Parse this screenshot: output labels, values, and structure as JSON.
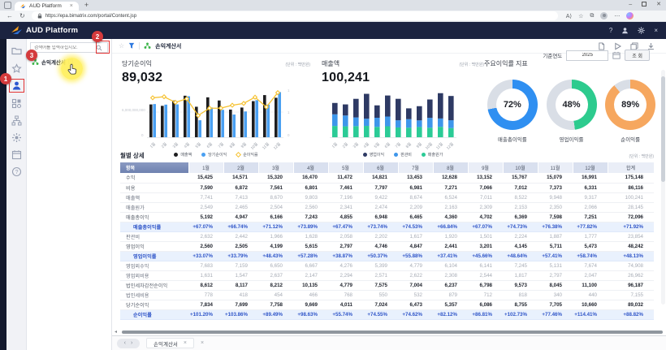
{
  "browser": {
    "tab_title": "AUD Platform",
    "url": "https://epa.bimatrix.com/portal/Content.jsp",
    "nav_icons": [
      "back-icon",
      "reload-icon",
      "lock-icon"
    ],
    "action_icons": [
      "read-aloud-icon",
      "favorite-star-icon",
      "collections-icon",
      "profile-avatar",
      "more-menu-icon",
      "copilot-icon"
    ],
    "window_controls": [
      "minimize-icon",
      "maximize-icon",
      "close-icon"
    ]
  },
  "navbar": {
    "brand": "AUD Platform",
    "right_icons": [
      "help-icon",
      "user-icon",
      "gear-icon",
      "close-icon"
    ],
    "help_glyph": "?",
    "close_glyph": "×"
  },
  "sidebar": {
    "rail_icons": [
      "folder-icon",
      "star-icon",
      "user-icon",
      "grid-icon",
      "sitemap-icon",
      "gear-flower-icon",
      "calendar-icon",
      "help-icon"
    ]
  },
  "tree": {
    "search_placeholder": "검색어를 입력하십시오.",
    "item_label": "손익계산서"
  },
  "toolbar": {
    "report_title": "손익계산서",
    "star_glyph": "☆",
    "right_icons": [
      "document-icon",
      "run-icon",
      "window-copy-icon",
      "download-icon"
    ]
  },
  "controls": {
    "base_year_label": "기준연도",
    "base_year_value": "2025",
    "query_button_label": "조 회"
  },
  "annotations": {
    "step1": "1",
    "step2": "2",
    "step3": "3"
  },
  "chart_data": [
    {
      "type": "bar",
      "subtype": "grouped-bars-with-line",
      "title": "당기순이익",
      "kpi_value": "89,032",
      "unit": "(단위 : 백만원)",
      "categories": [
        "1월",
        "2월",
        "3월",
        "4월",
        "5월",
        "6월",
        "7월",
        "8월",
        "9월",
        "10월",
        "11월",
        "12월"
      ],
      "series": [
        {
          "name": "매출액",
          "type": "bar",
          "color": "#1d1d1f",
          "values": [
            7741,
            7413,
            8670,
            9803,
            7196,
            9422,
            8674,
            6524,
            7011,
            8522,
            9948,
            9317
          ]
        },
        {
          "name": "당기순이익",
          "type": "bar",
          "color": "#4aa0f2",
          "values": [
            7834,
            7699,
            7758,
            9669,
            4011,
            7024,
            6473,
            5357,
            6086,
            8755,
            7705,
            10660
          ]
        },
        {
          "name": "순이익률",
          "type": "line",
          "color": "#f6c231",
          "marker": "diamond",
          "values": [
            101.2,
            103.86,
            89.49,
            98.63,
            55.74,
            74.55,
            74.62,
            82.12,
            86.81,
            102.73,
            77.46,
            114.41
          ]
        }
      ],
      "y_left_ticks": [
        "6,000,000,000",
        "0"
      ],
      "y_right_ticks": [
        "1",
        "1",
        "0"
      ],
      "legend_position": "bottom"
    },
    {
      "type": "bar",
      "subtype": "stacked",
      "title": "매출액",
      "kpi_value": "100,241",
      "unit": "(단위 : 백만원)",
      "categories": [
        "1월",
        "2월",
        "3월",
        "4월",
        "5월",
        "6월",
        "7월",
        "8월",
        "9월",
        "10월",
        "11월",
        "12월"
      ],
      "series": [
        {
          "name": "매출원가",
          "color": "#2bcb96",
          "values": [
            2549,
            2465,
            2504,
            2560,
            2341,
            2474,
            2209,
            2163,
            2309,
            2153,
            2350,
            2066
          ]
        },
        {
          "name": "판관비",
          "color": "#3e96ea",
          "values": [
            2632,
            2442,
            1966,
            1628,
            2058,
            2202,
            1617,
            1920,
            1501,
            2224,
            1887,
            1777
          ]
        },
        {
          "name": "영업이익",
          "color": "#2e3a64",
          "values": [
            2560,
            2505,
            4199,
            5615,
            2797,
            4746,
            4847,
            2441,
            3201,
            4145,
            5711,
            5473
          ]
        }
      ],
      "legend_order": [
        "영업이익",
        "판관비",
        "매출원가"
      ],
      "legend_position": "bottom"
    },
    {
      "type": "pie",
      "subtype": "donut-set",
      "title": "주요이익률 지표",
      "track_color": "#d9dee6",
      "donuts": [
        {
          "label": "매출총이익률",
          "value": 72,
          "display": "72%",
          "color": "#2f8ff1"
        },
        {
          "label": "영업이익률",
          "value": 48,
          "display": "48%",
          "color": "#2dcb8e"
        },
        {
          "label": "순이익률",
          "value": 89,
          "display": "89%",
          "color": "#f6a75f"
        }
      ]
    }
  ],
  "table": {
    "title": "월별 상세",
    "unit": "(단위 : 백만원)",
    "columns": [
      "항목",
      "1월",
      "2월",
      "3월",
      "4월",
      "5월",
      "6월",
      "7월",
      "8월",
      "9월",
      "10월",
      "11월",
      "12월",
      "합계"
    ],
    "rows": [
      {
        "label": "수익",
        "type": "strong",
        "values": [
          "15,425",
          "14,571",
          "15,320",
          "16,470",
          "11,472",
          "14,821",
          "13,453",
          "12,628",
          "13,152",
          "15,767",
          "15,079",
          "16,991",
          "175,148"
        ]
      },
      {
        "label": "비용",
        "type": "strong",
        "values": [
          "7,590",
          "6,872",
          "7,561",
          "6,801",
          "7,461",
          "7,797",
          "6,981",
          "7,271",
          "7,066",
          "7,012",
          "7,373",
          "6,331",
          "86,116"
        ]
      },
      {
        "label": "매출액",
        "type": "normal",
        "values": [
          "7,741",
          "7,413",
          "8,670",
          "9,803",
          "7,196",
          "9,422",
          "8,674",
          "6,524",
          "7,011",
          "8,522",
          "9,948",
          "9,317",
          "100,241"
        ]
      },
      {
        "label": "매출원가",
        "type": "normal",
        "values": [
          "2,549",
          "2,465",
          "2,504",
          "2,560",
          "2,341",
          "2,474",
          "2,209",
          "2,163",
          "2,309",
          "2,153",
          "2,350",
          "2,066",
          "28,145"
        ]
      },
      {
        "label": "매출총이익",
        "type": "strong",
        "values": [
          "5,192",
          "4,947",
          "6,166",
          "7,243",
          "4,855",
          "6,948",
          "6,465",
          "4,360",
          "4,702",
          "6,369",
          "7,598",
          "7,251",
          "72,096"
        ]
      },
      {
        "label": "매출총이익률",
        "type": "rate",
        "values": [
          "+67.07%",
          "+66.74%",
          "+71.12%",
          "+73.89%",
          "+67.47%",
          "+73.74%",
          "+74.53%",
          "+66.84%",
          "+67.07%",
          "+74.73%",
          "+76.38%",
          "+77.82%",
          "+71.92%"
        ]
      },
      {
        "label": "판관비",
        "type": "normal",
        "values": [
          "2,632",
          "2,442",
          "1,966",
          "1,628",
          "2,058",
          "2,202",
          "1,617",
          "1,920",
          "1,501",
          "2,224",
          "1,887",
          "1,777",
          "23,854"
        ]
      },
      {
        "label": "영업이익",
        "type": "strong",
        "values": [
          "2,560",
          "2,505",
          "4,199",
          "5,615",
          "2,797",
          "4,746",
          "4,847",
          "2,441",
          "3,201",
          "4,145",
          "5,711",
          "5,473",
          "48,242"
        ]
      },
      {
        "label": "영업이익률",
        "type": "rate",
        "values": [
          "+33.07%",
          "+33.79%",
          "+48.43%",
          "+57.28%",
          "+38.87%",
          "+50.37%",
          "+55.88%",
          "+37.41%",
          "+45.66%",
          "+48.64%",
          "+57.41%",
          "+58.74%",
          "+48.13%"
        ]
      },
      {
        "label": "영업외수익",
        "type": "normal",
        "values": [
          "7,683",
          "7,159",
          "6,650",
          "6,667",
          "4,276",
          "5,399",
          "4,779",
          "6,104",
          "6,141",
          "7,245",
          "5,131",
          "7,674",
          "74,908"
        ]
      },
      {
        "label": "영업외비용",
        "type": "normal",
        "values": [
          "1,631",
          "1,547",
          "2,637",
          "2,147",
          "2,294",
          "2,571",
          "2,622",
          "2,308",
          "2,544",
          "1,817",
          "2,797",
          "2,047",
          "26,962"
        ]
      },
      {
        "label": "법인세차감전순이익",
        "type": "strong",
        "values": [
          "8,612",
          "8,117",
          "8,212",
          "10,135",
          "4,779",
          "7,575",
          "7,004",
          "6,237",
          "6,798",
          "9,573",
          "8,045",
          "11,100",
          "96,187"
        ]
      },
      {
        "label": "법인세비용",
        "type": "normal",
        "values": [
          "778",
          "418",
          "454",
          "466",
          "768",
          "550",
          "532",
          "879",
          "712",
          "818",
          "340",
          "440",
          "7,155"
        ]
      },
      {
        "label": "당기순이익",
        "type": "strong",
        "values": [
          "7,834",
          "7,699",
          "7,758",
          "9,669",
          "4,011",
          "7,024",
          "6,473",
          "5,357",
          "6,086",
          "8,755",
          "7,705",
          "10,660",
          "89,032"
        ]
      },
      {
        "label": "순이익률",
        "type": "rate",
        "values": [
          "+101.20%",
          "+103.86%",
          "+89.49%",
          "+98.63%",
          "+55.74%",
          "+74.55%",
          "+74.62%",
          "+82.12%",
          "+86.81%",
          "+102.73%",
          "+77.46%",
          "+114.41%",
          "+88.82%"
        ]
      }
    ]
  },
  "bottom": {
    "pager_prev": "‹",
    "pager_next": "›",
    "tab_label": "손익계산서",
    "tab_close": "×",
    "extra_close": "×"
  }
}
